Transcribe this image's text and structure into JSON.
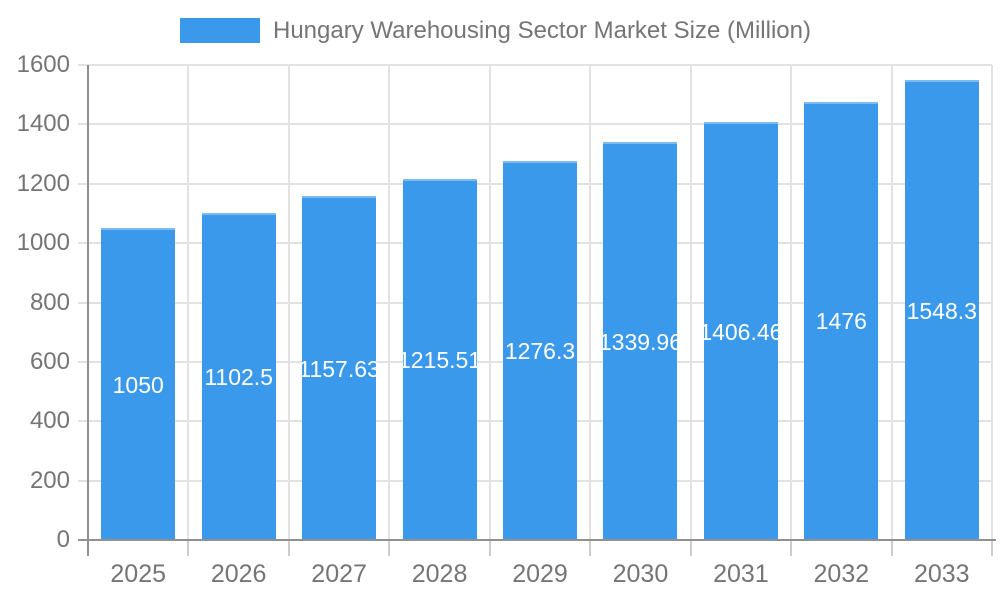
{
  "legend": {
    "label": "Hungary Warehousing Sector Market Size (Million)"
  },
  "chart_data": {
    "type": "bar",
    "title": "Hungary Warehousing Sector Market Size (Million)",
    "categories": [
      "2025",
      "2026",
      "2027",
      "2028",
      "2029",
      "2030",
      "2031",
      "2032",
      "2033"
    ],
    "values": [
      1050,
      1102.5,
      1157.63,
      1215.51,
      1276.3,
      1339.96,
      1406.46,
      1476,
      1548.3
    ],
    "bar_labels": [
      "1050",
      "1102.5",
      "1157.63",
      "1215.51",
      "1276.3",
      "1339.96",
      "1406.46",
      "1476",
      "1548.3"
    ],
    "xlabel": "",
    "ylabel": "",
    "ylim": [
      0,
      1600
    ],
    "ytick_labels": [
      "0",
      "200",
      "400",
      "600",
      "800",
      "1000",
      "1200",
      "1400",
      "1600"
    ],
    "grid": true,
    "legend_position": "top",
    "colors": {
      "bar": "#3B99EC",
      "bar_top_edge": "#7EBAF2",
      "grid": "#E2E2E2",
      "axis_tick": "#CCCCCC",
      "axis_line": "#909090",
      "text": "#757575",
      "bar_label_text": "#FFFFFF",
      "background": "#FFFFFF"
    }
  }
}
